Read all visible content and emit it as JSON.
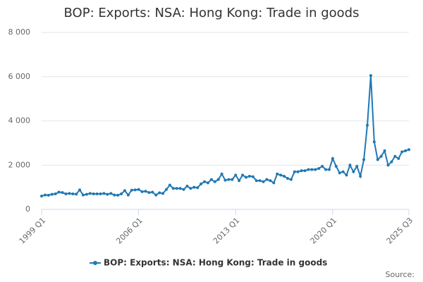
{
  "chart_data": {
    "type": "line",
    "title": "BOP: Exports: NSA: Hong Kong: Trade in goods",
    "source_label": "Source:",
    "categories": [
      "1999 Q1",
      null,
      null,
      null,
      null,
      null,
      null,
      null,
      null,
      null,
      null,
      null,
      null,
      null,
      null,
      null,
      null,
      null,
      null,
      null,
      null,
      null,
      null,
      null,
      null,
      null,
      null,
      null,
      "2006 Q1",
      null,
      null,
      null,
      null,
      null,
      null,
      null,
      null,
      null,
      null,
      null,
      null,
      null,
      null,
      null,
      null,
      null,
      null,
      null,
      null,
      null,
      null,
      null,
      null,
      null,
      null,
      null,
      "2013 Q1",
      null,
      null,
      null,
      null,
      null,
      null,
      null,
      null,
      null,
      null,
      null,
      null,
      null,
      null,
      null,
      null,
      null,
      null,
      null,
      null,
      null,
      null,
      null,
      null,
      null,
      null,
      null,
      "2020 Q1",
      null,
      null,
      null,
      null,
      null,
      null,
      null,
      null,
      null,
      null,
      null,
      null,
      null,
      null,
      null,
      null,
      null,
      null,
      null,
      null,
      null,
      "2025 Q3"
    ],
    "series": [
      {
        "name": "BOP: Exports: NSA: Hong Kong: Trade in goods",
        "color": "#1f78b4",
        "values": [
          600,
          650,
          640,
          680,
          700,
          780,
          760,
          700,
          720,
          700,
          690,
          880,
          650,
          680,
          720,
          700,
          700,
          700,
          720,
          680,
          720,
          650,
          640,
          700,
          850,
          650,
          870,
          880,
          900,
          800,
          820,
          760,
          780,
          650,
          750,
          720,
          900,
          1100,
          950,
          950,
          950,
          900,
          1050,
          950,
          1000,
          980,
          1150,
          1250,
          1200,
          1350,
          1250,
          1350,
          1600,
          1320,
          1350,
          1350,
          1550,
          1300,
          1550,
          1450,
          1500,
          1480,
          1300,
          1300,
          1250,
          1350,
          1300,
          1200,
          1600,
          1550,
          1500,
          1400,
          1350,
          1700,
          1700,
          1750,
          1750,
          1800,
          1800,
          1800,
          1850,
          1950,
          1800,
          1800,
          2300,
          1950,
          1650,
          1700,
          1550,
          2000,
          1700,
          1950,
          1500,
          2250,
          3800,
          6050,
          3050,
          2250,
          2400,
          2650,
          2000,
          2150,
          2400,
          2300,
          2600,
          2650,
          2700
        ]
      }
    ],
    "ylim": [
      0,
      8000
    ],
    "yticks": [
      0,
      {
        "value": 2000,
        "label": "2 000"
      },
      {
        "value": 4000,
        "label": "4 000"
      },
      {
        "value": 6000,
        "label": "6 000"
      },
      {
        "value": 8000,
        "label": "8 000"
      }
    ],
    "grid": true,
    "legend": "bottom"
  }
}
